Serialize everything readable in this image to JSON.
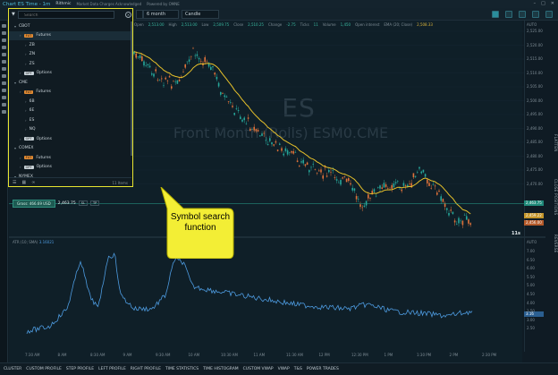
{
  "window": {
    "title": "Chart ES Time - 1m",
    "brand": "Rithmic",
    "account": "Market Data Charges Acknowledged",
    "powered": "Powered by OMNE"
  },
  "toolbar": {
    "symbol": "ES",
    "range": "6 month",
    "chart_type": "Candle"
  },
  "infobar": {
    "fields": [
      {
        "label": "Open",
        "value": "2,513.00"
      },
      {
        "label": "High",
        "value": "2,513.00"
      },
      {
        "label": "Low",
        "value": "2,509.75"
      },
      {
        "label": "Close",
        "value": "2,510.25"
      },
      {
        "label": "Change",
        "value": "-2.75"
      },
      {
        "label": "Ticks",
        "value": "11"
      },
      {
        "label": "Volume",
        "value": "1,450"
      },
      {
        "label": "Open interest",
        "value": ""
      }
    ],
    "ema_label": "EMA (20; Close)",
    "ema_value": "2,508.33"
  },
  "watermark": {
    "symbol": "ES",
    "description": "Front Month (Rolls) ESM0.CME"
  },
  "price_axis": {
    "auto_label": "AUTO",
    "labels": [
      "2,525.00",
      "2,520.00",
      "2,515.00",
      "2,510.00",
      "2,505.00",
      "2,500.00",
      "2,495.00",
      "2,490.00",
      "2,485.00",
      "2,480.00",
      "2,475.00",
      "2,470.00"
    ],
    "last_price": "2,463.75",
    "ema_price": "2,459.22",
    "low_price": "2,456.00"
  },
  "atr_axis": {
    "auto_label": "AUTO",
    "labels": [
      "7.00",
      "6.50",
      "6.00",
      "5.50",
      "5.00",
      "4.50",
      "4.00",
      "3.50",
      "3.00",
      "2.50"
    ],
    "current": "3.16"
  },
  "position": {
    "pnl": "Gross: 466.69 USD",
    "price": "2,463.75",
    "sl": "SL",
    "tp": "TP"
  },
  "atr": {
    "label": "ATR (10; SMA)",
    "value": "3.16021"
  },
  "timeframe_label": "11s",
  "time_axis": [
    "7:30 AM",
    "8 AM",
    "8:30 AM",
    "9 AM",
    "9:30 AM",
    "10 AM",
    "10:30 AM",
    "11 AM",
    "11:30 AM",
    "12 PM",
    "12:30 PM",
    "1 PM",
    "1:30 PM",
    "2 PM",
    "2:30 PM"
  ],
  "side_tabs": [
    "FLATTEN",
    "CLOSE POSITIONS",
    "REVERSE"
  ],
  "bottom_bar": [
    "CLUSTER",
    "CUSTOM PROFILE",
    "STEP PROFILE",
    "LEFT PROFILE",
    "RIGHT PROFILE",
    "TIME STATISTICS",
    "TIME HISTOGRAM",
    "CUSTOM VWAP",
    "VWAP",
    "T&S",
    "POWER TRADES"
  ],
  "symbol_panel": {
    "search_placeholder": "Search",
    "rows": [
      {
        "kind": "exchange",
        "label": "CBOT"
      },
      {
        "kind": "futures",
        "label": "Futures",
        "badge": "FUT",
        "selected": true
      },
      {
        "kind": "symbol",
        "label": "ZB"
      },
      {
        "kind": "symbol",
        "label": "ZN"
      },
      {
        "kind": "symbol",
        "label": "ZS"
      },
      {
        "kind": "options",
        "label": "Options",
        "badge": "OPT"
      },
      {
        "kind": "exchange",
        "label": "CME"
      },
      {
        "kind": "futures",
        "label": "Futures",
        "badge": "FUT"
      },
      {
        "kind": "symbol",
        "label": "6B"
      },
      {
        "kind": "symbol",
        "label": "6E"
      },
      {
        "kind": "symbol",
        "label": "ES"
      },
      {
        "kind": "symbol",
        "label": "NQ"
      },
      {
        "kind": "options",
        "label": "Options",
        "badge": "OPT"
      },
      {
        "kind": "exchange",
        "label": "COMEX"
      },
      {
        "kind": "futures",
        "label": "Futures",
        "badge": "FUT"
      },
      {
        "kind": "options",
        "label": "Options",
        "badge": "OPT"
      },
      {
        "kind": "exchange",
        "label": "NYMEX"
      }
    ],
    "count": "11 Items"
  },
  "callout": {
    "text": "Symbol search function"
  },
  "colors": {
    "up": "#26a69a",
    "down": "#e0723a",
    "ema": "#e6c02a",
    "atr": "#4d9be0",
    "highlight": "#e8e530"
  }
}
